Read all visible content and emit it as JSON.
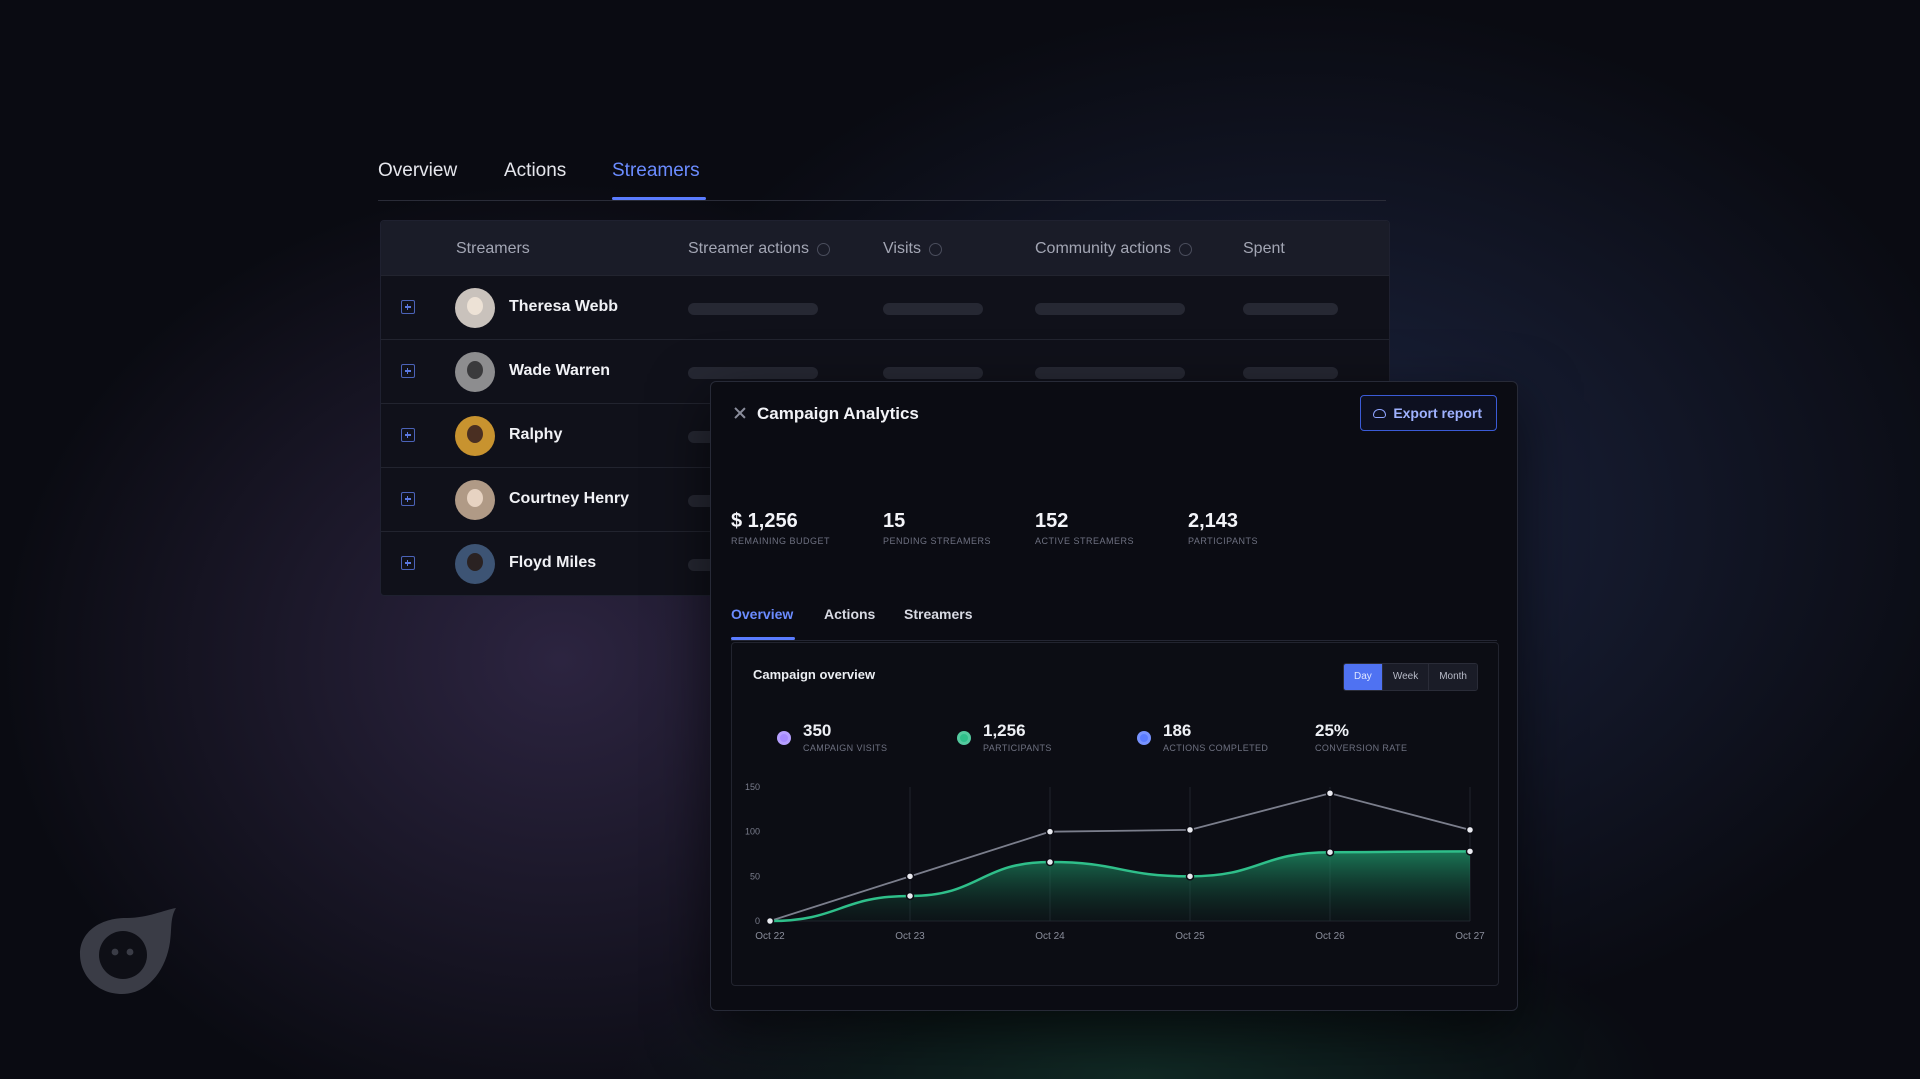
{
  "top_tabs": [
    "Overview",
    "Actions",
    "Streamers"
  ],
  "top_tabs_active": "Streamers",
  "table": {
    "columns": [
      "Streamers",
      "Streamer actions",
      "Visits",
      "Community actions",
      "Spent"
    ],
    "rows": [
      {
        "name": "Theresa Webb"
      },
      {
        "name": "Wade Warren"
      },
      {
        "name": "Ralphy"
      },
      {
        "name": "Courtney Henry"
      },
      {
        "name": "Floyd Miles"
      }
    ]
  },
  "modal": {
    "title": "Campaign Analytics",
    "export_label": "Export report",
    "stats": [
      {
        "value": "$ 1,256",
        "label": "REMAINING BUDGET"
      },
      {
        "value": "15",
        "label": "PENDING STREAMERS"
      },
      {
        "value": "152",
        "label": "ACTIVE STREAMERS"
      },
      {
        "value": "2,143",
        "label": "PARTICIPANTS"
      }
    ],
    "tabs": [
      "Overview",
      "Actions",
      "Streamers"
    ],
    "active_tab": "Overview",
    "card": {
      "title": "Campaign overview",
      "ranges": [
        "Day",
        "Week",
        "Month"
      ],
      "active_range": "Day",
      "kpis": [
        {
          "value": "350",
          "label": "CAMPAIGN VISITS",
          "color": "#a68bff"
        },
        {
          "value": "1,256",
          "label": "PARTICIPANTS",
          "color": "#2fbf8a"
        },
        {
          "value": "186",
          "label": "ACTIONS COMPLETED",
          "color": "#5b7cff"
        },
        {
          "value": "25%",
          "label": "CONVERSION RATE",
          "color": ""
        }
      ]
    }
  },
  "chart_data": {
    "type": "line",
    "categories": [
      "Oct 22",
      "Oct 23",
      "Oct 24",
      "Oct 25",
      "Oct 26",
      "Oct 27"
    ],
    "series": [
      {
        "values": [
          0,
          50,
          100,
          102,
          143,
          102
        ],
        "color": "#7b7e8c"
      },
      {
        "values": [
          0,
          28,
          66,
          50,
          77,
          78
        ],
        "color": "#2fbf8a",
        "fill": true
      }
    ],
    "yticks": [
      0,
      50,
      100,
      150
    ],
    "ylim": [
      0,
      150
    ],
    "grid": "vertical"
  },
  "colors": {
    "accent": "#5a7cff",
    "background": "#0a0b12"
  }
}
